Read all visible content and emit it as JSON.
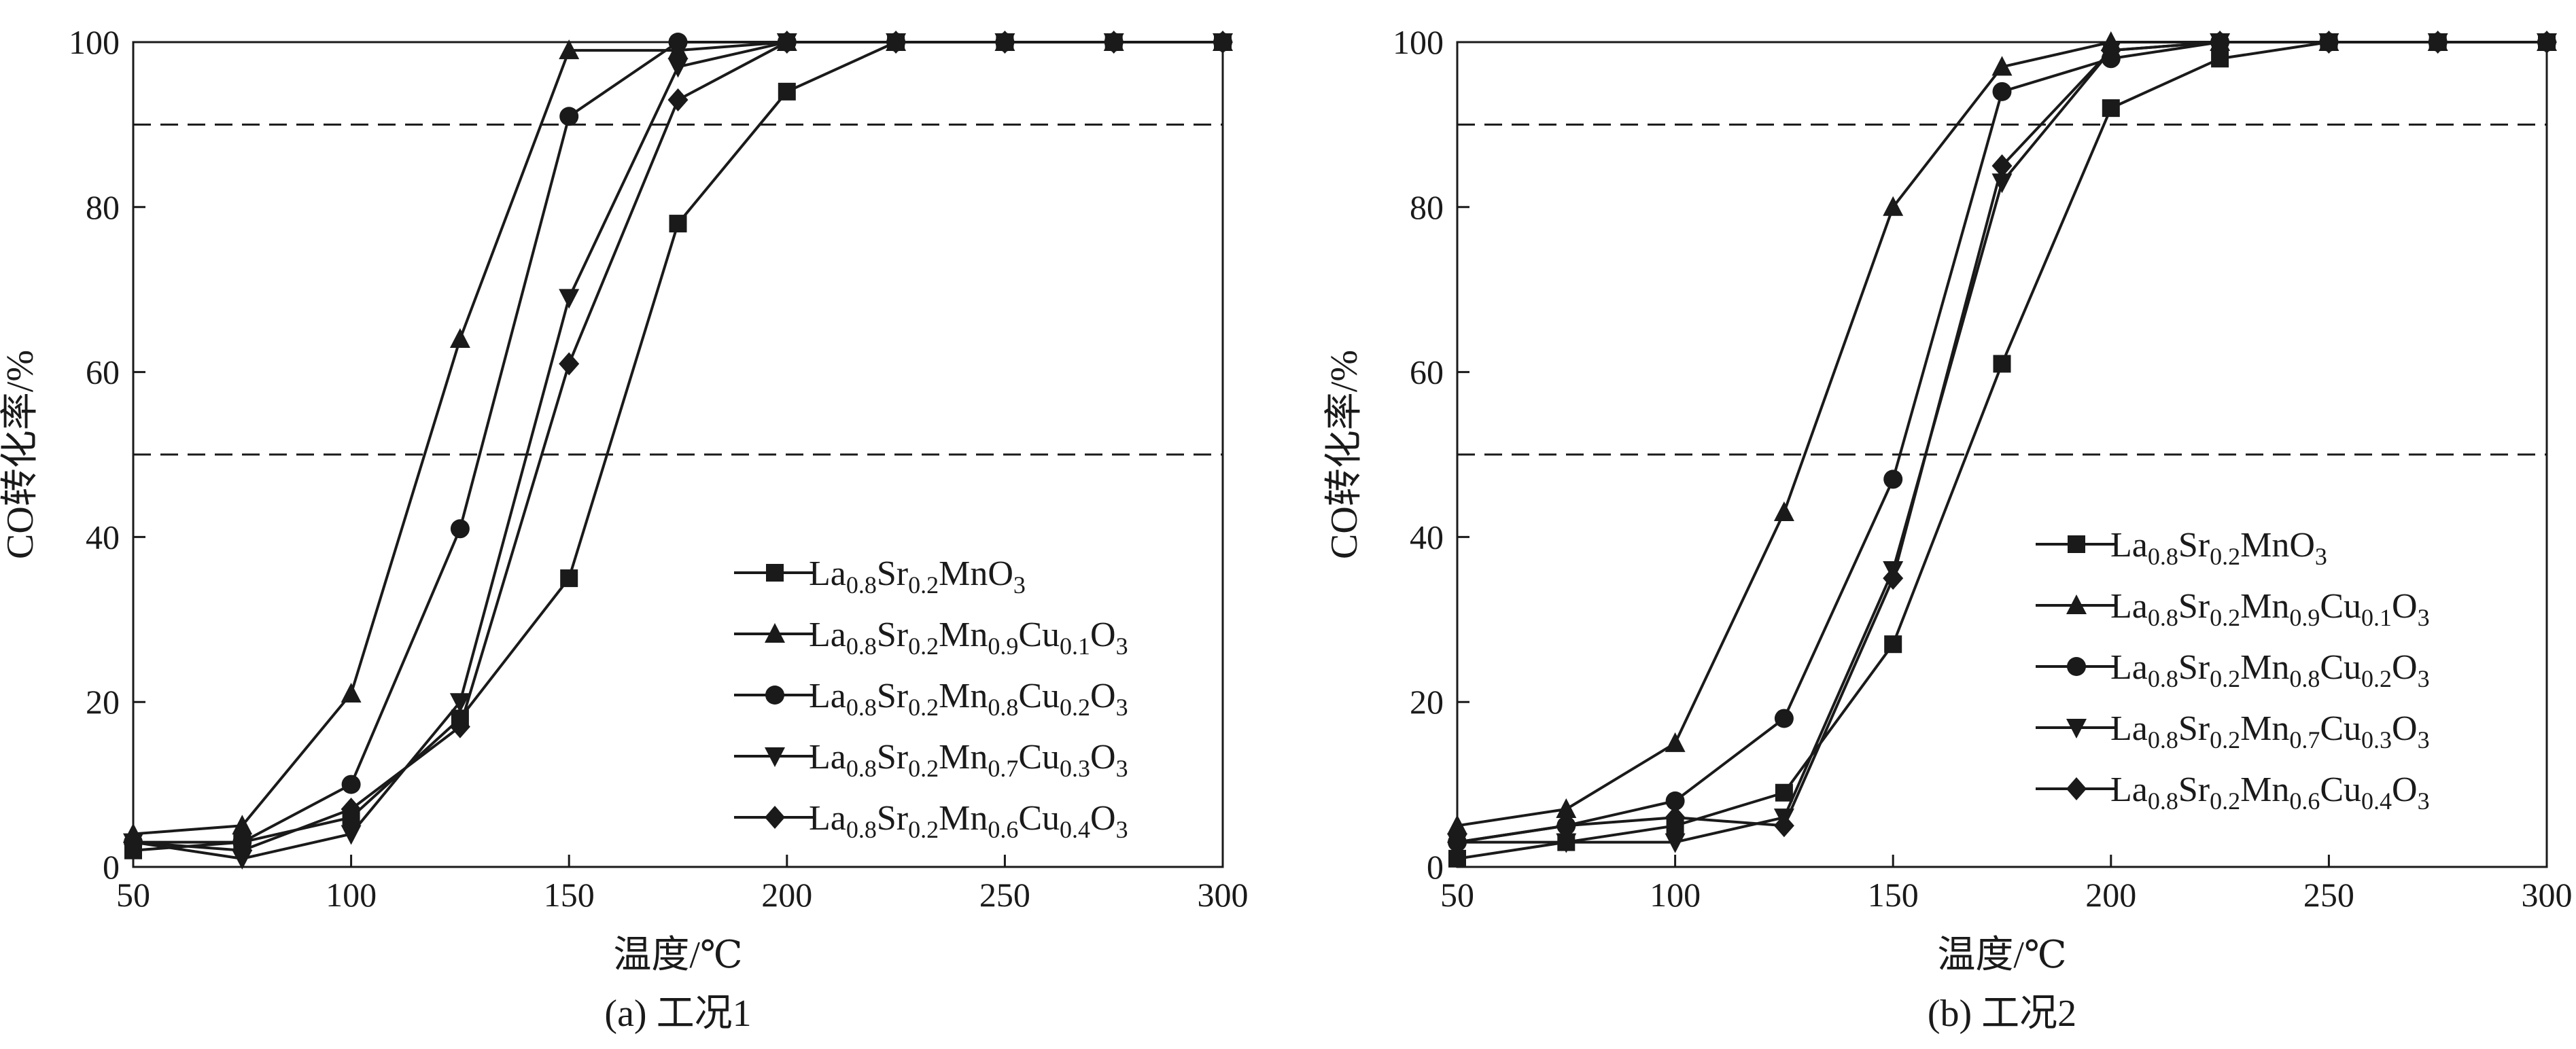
{
  "figure": {
    "background": "#ffffff",
    "line_color": "#1a1a1a",
    "threshold_lines": [
      90,
      50
    ]
  },
  "chart_data": [
    {
      "type": "line",
      "caption": "(a) 工况1",
      "xlabel": "温度/℃",
      "ylabel": "CO转化率/%",
      "xlim": [
        50,
        300
      ],
      "ylim": [
        0,
        100
      ],
      "xticks": [
        50,
        100,
        150,
        200,
        250,
        300
      ],
      "yticks": [
        0,
        20,
        40,
        60,
        80,
        100
      ],
      "grid": false,
      "legend_position": "bottom-right",
      "x": [
        50,
        75,
        100,
        125,
        150,
        175,
        200,
        225,
        250,
        275,
        300
      ],
      "series": [
        {
          "name": "La0.8Sr0.2MnO3",
          "formula": [
            [
              "La",
              ""
            ],
            [
              "0.8",
              "sub"
            ],
            [
              "Sr",
              ""
            ],
            [
              "0.2",
              "sub"
            ],
            [
              "MnO",
              ""
            ],
            [
              "3",
              "sub"
            ]
          ],
          "marker": "square",
          "values": [
            2,
            3,
            6,
            18,
            35,
            78,
            94,
            100,
            100,
            100,
            100
          ]
        },
        {
          "name": "La0.8Sr0.2Mn0.9Cu0.1O3",
          "formula": [
            [
              "La",
              ""
            ],
            [
              "0.8",
              "sub"
            ],
            [
              "Sr",
              ""
            ],
            [
              "0.2",
              "sub"
            ],
            [
              "Mn",
              ""
            ],
            [
              "0.9",
              "sub"
            ],
            [
              "Cu",
              ""
            ],
            [
              "0.1",
              "sub"
            ],
            [
              "O",
              ""
            ],
            [
              "3",
              "sub"
            ]
          ],
          "marker": "triangle-up",
          "values": [
            4,
            5,
            21,
            64,
            99,
            99,
            100,
            100,
            100,
            100,
            100
          ]
        },
        {
          "name": "La0.8Sr0.2Mn0.8Cu0.2O3",
          "formula": [
            [
              "La",
              ""
            ],
            [
              "0.8",
              "sub"
            ],
            [
              "Sr",
              ""
            ],
            [
              "0.2",
              "sub"
            ],
            [
              "Mn",
              ""
            ],
            [
              "0.8",
              "sub"
            ],
            [
              "Cu",
              ""
            ],
            [
              "0.2",
              "sub"
            ],
            [
              "O",
              ""
            ],
            [
              "3",
              "sub"
            ]
          ],
          "marker": "circle",
          "values": [
            3,
            3,
            10,
            41,
            91,
            100,
            100,
            100,
            100,
            100,
            100
          ]
        },
        {
          "name": "La0.8Sr0.2Mn0.7Cu0.3O3",
          "formula": [
            [
              "La",
              ""
            ],
            [
              "0.8",
              "sub"
            ],
            [
              "Sr",
              ""
            ],
            [
              "0.2",
              "sub"
            ],
            [
              "Mn",
              ""
            ],
            [
              "0.7",
              "sub"
            ],
            [
              "Cu",
              ""
            ],
            [
              "0.3",
              "sub"
            ],
            [
              "O",
              ""
            ],
            [
              "3",
              "sub"
            ]
          ],
          "marker": "triangle-down",
          "values": [
            3,
            1,
            4,
            20,
            69,
            97,
            100,
            100,
            100,
            100,
            100
          ]
        },
        {
          "name": "La0.8Sr0.2Mn0.6Cu0.4O3",
          "formula": [
            [
              "La",
              ""
            ],
            [
              "0.8",
              "sub"
            ],
            [
              "Sr",
              ""
            ],
            [
              "0.2",
              "sub"
            ],
            [
              "Mn",
              ""
            ],
            [
              "0.6",
              "sub"
            ],
            [
              "Cu",
              ""
            ],
            [
              "0.4",
              "sub"
            ],
            [
              "O",
              ""
            ],
            [
              "3",
              "sub"
            ]
          ],
          "marker": "diamond",
          "values": [
            3,
            2,
            7,
            17,
            61,
            93,
            100,
            100,
            100,
            100,
            100
          ]
        }
      ]
    },
    {
      "type": "line",
      "caption": "(b) 工况2",
      "xlabel": "温度/℃",
      "ylabel": "CO转化率/%",
      "xlim": [
        50,
        300
      ],
      "ylim": [
        0,
        100
      ],
      "xticks": [
        50,
        100,
        150,
        200,
        250,
        300
      ],
      "yticks": [
        0,
        20,
        40,
        60,
        80,
        100
      ],
      "grid": false,
      "legend_position": "bottom-right",
      "x": [
        50,
        75,
        100,
        125,
        150,
        175,
        200,
        225,
        250,
        275,
        300
      ],
      "series": [
        {
          "name": "La0.8Sr0.2MnO3",
          "formula": [
            [
              "La",
              ""
            ],
            [
              "0.8",
              "sub"
            ],
            [
              "Sr",
              ""
            ],
            [
              "0.2",
              "sub"
            ],
            [
              "MnO",
              ""
            ],
            [
              "3",
              "sub"
            ]
          ],
          "marker": "square",
          "values": [
            1,
            3,
            5,
            9,
            27,
            61,
            92,
            98,
            100,
            100,
            100
          ]
        },
        {
          "name": "La0.8Sr0.2Mn0.9Cu0.1O3",
          "formula": [
            [
              "La",
              ""
            ],
            [
              "0.8",
              "sub"
            ],
            [
              "Sr",
              ""
            ],
            [
              "0.2",
              "sub"
            ],
            [
              "Mn",
              ""
            ],
            [
              "0.9",
              "sub"
            ],
            [
              "Cu",
              ""
            ],
            [
              "0.1",
              "sub"
            ],
            [
              "O",
              ""
            ],
            [
              "3",
              "sub"
            ]
          ],
          "marker": "triangle-up",
          "values": [
            5,
            7,
            15,
            43,
            80,
            97,
            100,
            100,
            100,
            100,
            100
          ]
        },
        {
          "name": "La0.8Sr0.2Mn0.8Cu0.2O3",
          "formula": [
            [
              "La",
              ""
            ],
            [
              "0.8",
              "sub"
            ],
            [
              "Sr",
              ""
            ],
            [
              "0.2",
              "sub"
            ],
            [
              "Mn",
              ""
            ],
            [
              "0.8",
              "sub"
            ],
            [
              "Cu",
              ""
            ],
            [
              "0.2",
              "sub"
            ],
            [
              "O",
              ""
            ],
            [
              "3",
              "sub"
            ]
          ],
          "marker": "circle",
          "values": [
            3,
            5,
            8,
            18,
            47,
            94,
            98,
            100,
            100,
            100,
            100
          ]
        },
        {
          "name": "La0.8Sr0.2Mn0.7Cu0.3O3",
          "formula": [
            [
              "La",
              ""
            ],
            [
              "0.8",
              "sub"
            ],
            [
              "Sr",
              ""
            ],
            [
              "0.2",
              "sub"
            ],
            [
              "Mn",
              ""
            ],
            [
              "0.7",
              "sub"
            ],
            [
              "Cu",
              ""
            ],
            [
              "0.3",
              "sub"
            ],
            [
              "O",
              ""
            ],
            [
              "3",
              "sub"
            ]
          ],
          "marker": "triangle-down",
          "values": [
            3,
            3,
            3,
            6,
            36,
            83,
            99,
            100,
            100,
            100,
            100
          ]
        },
        {
          "name": "La0.8Sr0.2Mn0.6Cu0.4O3",
          "formula": [
            [
              "La",
              ""
            ],
            [
              "0.8",
              "sub"
            ],
            [
              "Sr",
              ""
            ],
            [
              "0.2",
              "sub"
            ],
            [
              "Mn",
              ""
            ],
            [
              "0.6",
              "sub"
            ],
            [
              "Cu",
              ""
            ],
            [
              "0.4",
              "sub"
            ],
            [
              "O",
              ""
            ],
            [
              "3",
              "sub"
            ]
          ],
          "marker": "diamond",
          "values": [
            3,
            5,
            6,
            5,
            35,
            85,
            99,
            100,
            100,
            100,
            100
          ]
        }
      ]
    }
  ]
}
